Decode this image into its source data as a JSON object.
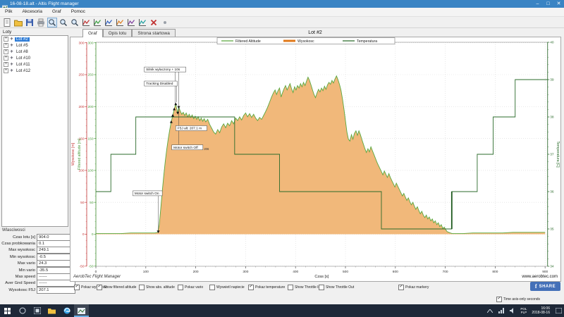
{
  "window": {
    "title": "16-08-18.alt - Altis Flight manager"
  },
  "menu": {
    "items": [
      "Plik",
      "Akcesoria",
      "Graf",
      "Pomoc"
    ]
  },
  "toolbar": {
    "icons": [
      {
        "name": "new-file-icon",
        "type": "doc"
      },
      {
        "name": "open-file-icon",
        "type": "folder"
      },
      {
        "name": "save-icon",
        "type": "floppy"
      },
      {
        "name": "print-icon",
        "type": "printer"
      },
      {
        "name": "zoom-in-icon",
        "type": "zoom",
        "selected": true
      },
      {
        "name": "zoom-out-icon",
        "type": "zoom"
      },
      {
        "name": "zoom-reset-icon",
        "type": "zoom"
      },
      {
        "name": "chart-altitude-icon",
        "type": "chart",
        "color": "#c03030"
      },
      {
        "name": "chart-vario-icon",
        "type": "chart",
        "color": "#3aa040"
      },
      {
        "name": "chart-voltage-icon",
        "type": "chart",
        "color": "#3060c0"
      },
      {
        "name": "chart-temperature-icon",
        "type": "chart",
        "color": "#e08020"
      },
      {
        "name": "chart-throttle-icon",
        "type": "chart",
        "color": "#8040a0"
      },
      {
        "name": "chart-markers-icon",
        "type": "chart",
        "color": "#20a0a0"
      },
      {
        "name": "delete-icon",
        "type": "cross"
      },
      {
        "name": "options-icon",
        "type": "dot"
      }
    ]
  },
  "sidebar": {
    "flights_label": "Loty",
    "flights": [
      "Lot #2",
      "Lot #5",
      "Lot #8",
      "Lot #10",
      "Lot #11",
      "Lot #12"
    ],
    "selected_flight": "Lot #2",
    "properties_title": "Wlasciwosci",
    "properties": [
      {
        "label": "Czas lotu [s]",
        "value": "904.0"
      },
      {
        "label": "Czas probkowania",
        "value": "0.1"
      },
      {
        "label": "Max wysokosc",
        "value": "249.1"
      },
      {
        "label": "Min wysokosc",
        "value": "-0.5"
      },
      {
        "label": "Max vario",
        "value": "24.3"
      },
      {
        "label": "Min vario",
        "value": "-35.5"
      },
      {
        "label": "Max speed",
        "value": "------"
      },
      {
        "label": "Aver Gnd Speed",
        "value": "------"
      },
      {
        "label": "Wysokosc F5J",
        "value": "207.1"
      }
    ]
  },
  "tabs": [
    "Graf",
    "Opis lotu",
    "Strona startowa"
  ],
  "chart_data": {
    "type": "line",
    "title": "Lot #2",
    "xlabel": "Czas [s]",
    "xlim": [
      0,
      905
    ],
    "x_ticks": [
      0,
      100,
      200,
      300,
      400,
      500,
      600,
      700,
      800,
      900
    ],
    "grid": true,
    "legend_position": "top",
    "legend": [
      "Filtered Altitude",
      "Wysokosc",
      "Temperatura"
    ],
    "axes": {
      "left_outer": {
        "label": "Wysokosc [m]",
        "color": "#c23232",
        "range": [
          -50,
          300
        ],
        "ticks": [
          300,
          250,
          200,
          150,
          100,
          50,
          0,
          -50
        ]
      },
      "left_inner": {
        "label": "Filtered altitude [m]",
        "color": "#4a9a3a",
        "range": [
          -50,
          300
        ],
        "ticks": [
          300,
          250,
          200,
          150,
          100,
          50,
          0,
          -50
        ]
      },
      "right": {
        "label": "Temperatura [C]",
        "color": "#2b6b2b",
        "range": [
          34,
          40
        ],
        "ticks": [
          40,
          39,
          38,
          37,
          36,
          35,
          34
        ]
      }
    },
    "colors": {
      "area": "#f1b87a",
      "filtered_line": "#5aa83f",
      "temperature_line": "#2b6b2b",
      "marker": "#111111"
    },
    "altitude_profile": [
      [
        0,
        1
      ],
      [
        25,
        1
      ],
      [
        50,
        1
      ],
      [
        70,
        2
      ],
      [
        90,
        2
      ],
      [
        105,
        2
      ],
      [
        118,
        2
      ],
      [
        124,
        3
      ],
      [
        127,
        15
      ],
      [
        130,
        40
      ],
      [
        133,
        68
      ],
      [
        136,
        92
      ],
      [
        139,
        114
      ],
      [
        142,
        133
      ],
      [
        145,
        150
      ],
      [
        148,
        164
      ],
      [
        151,
        176
      ],
      [
        154,
        186
      ],
      [
        157,
        196
      ],
      [
        160,
        204
      ],
      [
        162,
        196
      ],
      [
        164,
        190
      ],
      [
        166,
        199
      ],
      [
        169,
        193
      ],
      [
        172,
        188
      ],
      [
        175,
        191
      ],
      [
        178,
        186
      ],
      [
        181,
        190
      ],
      [
        184,
        184
      ],
      [
        187,
        188
      ],
      [
        190,
        183
      ],
      [
        193,
        187
      ],
      [
        196,
        181
      ],
      [
        199,
        185
      ],
      [
        202,
        180
      ],
      [
        205,
        184
      ],
      [
        208,
        178
      ],
      [
        211,
        182
      ],
      [
        214,
        177
      ],
      [
        217,
        181
      ],
      [
        220,
        176
      ],
      [
        224,
        180
      ],
      [
        228,
        172
      ],
      [
        232,
        166
      ],
      [
        236,
        160
      ],
      [
        240,
        157
      ],
      [
        244,
        164
      ],
      [
        248,
        159
      ],
      [
        252,
        168
      ],
      [
        256,
        173
      ],
      [
        260,
        167
      ],
      [
        264,
        174
      ],
      [
        268,
        170
      ],
      [
        272,
        178
      ],
      [
        276,
        173
      ],
      [
        280,
        182
      ],
      [
        284,
        178
      ],
      [
        288,
        184
      ],
      [
        292,
        179
      ],
      [
        296,
        186
      ],
      [
        300,
        190
      ],
      [
        304,
        184
      ],
      [
        308,
        189
      ],
      [
        312,
        183
      ],
      [
        316,
        188
      ],
      [
        320,
        182
      ],
      [
        324,
        178
      ],
      [
        328,
        183
      ],
      [
        332,
        180
      ],
      [
        336,
        186
      ],
      [
        340,
        192
      ],
      [
        344,
        199
      ],
      [
        348,
        207
      ],
      [
        352,
        215
      ],
      [
        356,
        222
      ],
      [
        359,
        226
      ],
      [
        362,
        219
      ],
      [
        365,
        225
      ],
      [
        368,
        229
      ],
      [
        371,
        215
      ],
      [
        374,
        222
      ],
      [
        377,
        228
      ],
      [
        380,
        233
      ],
      [
        383,
        226
      ],
      [
        386,
        231
      ],
      [
        389,
        236
      ],
      [
        392,
        228
      ],
      [
        395,
        222
      ],
      [
        398,
        231
      ],
      [
        401,
        226
      ],
      [
        404,
        233
      ],
      [
        407,
        229
      ],
      [
        410,
        236
      ],
      [
        413,
        231
      ],
      [
        416,
        238
      ],
      [
        419,
        233
      ],
      [
        422,
        240
      ],
      [
        425,
        246
      ],
      [
        428,
        241
      ],
      [
        431,
        234
      ],
      [
        434,
        226
      ],
      [
        437,
        219
      ],
      [
        440,
        214
      ],
      [
        443,
        221
      ],
      [
        446,
        227
      ],
      [
        449,
        223
      ],
      [
        452,
        229
      ],
      [
        455,
        225
      ],
      [
        458,
        232
      ],
      [
        461,
        227
      ],
      [
        464,
        234
      ],
      [
        467,
        238
      ],
      [
        470,
        235
      ],
      [
        473,
        241
      ],
      [
        476,
        237
      ],
      [
        479,
        243
      ],
      [
        482,
        248
      ],
      [
        485,
        242
      ],
      [
        488,
        235
      ],
      [
        491,
        226
      ],
      [
        494,
        212
      ],
      [
        497,
        196
      ],
      [
        500,
        178
      ],
      [
        503,
        160
      ],
      [
        506,
        149
      ],
      [
        509,
        146
      ],
      [
        512,
        156
      ],
      [
        515,
        149
      ],
      [
        518,
        158
      ],
      [
        521,
        162
      ],
      [
        524,
        155
      ],
      [
        527,
        162
      ],
      [
        530,
        156
      ],
      [
        533,
        148
      ],
      [
        536,
        141
      ],
      [
        539,
        134
      ],
      [
        542,
        128
      ],
      [
        545,
        134
      ],
      [
        548,
        129
      ],
      [
        551,
        137
      ],
      [
        554,
        131
      ],
      [
        557,
        125
      ],
      [
        560,
        119
      ],
      [
        563,
        113
      ],
      [
        566,
        108
      ],
      [
        569,
        103
      ],
      [
        572,
        98
      ],
      [
        575,
        93
      ],
      [
        578,
        99
      ],
      [
        581,
        94
      ],
      [
        584,
        89
      ],
      [
        587,
        95
      ],
      [
        590,
        89
      ],
      [
        593,
        84
      ],
      [
        596,
        79
      ],
      [
        599,
        74
      ],
      [
        602,
        80
      ],
      [
        605,
        75
      ],
      [
        608,
        70
      ],
      [
        611,
        65
      ],
      [
        614,
        60
      ],
      [
        617,
        64
      ],
      [
        620,
        58
      ],
      [
        623,
        53
      ],
      [
        626,
        57
      ],
      [
        629,
        51
      ],
      [
        632,
        46
      ],
      [
        635,
        50
      ],
      [
        638,
        44
      ],
      [
        641,
        39
      ],
      [
        644,
        43
      ],
      [
        647,
        37
      ],
      [
        650,
        32
      ],
      [
        653,
        36
      ],
      [
        656,
        30
      ],
      [
        659,
        26
      ],
      [
        662,
        30
      ],
      [
        665,
        24
      ],
      [
        668,
        27
      ],
      [
        671,
        21
      ],
      [
        674,
        24
      ],
      [
        677,
        18
      ],
      [
        680,
        21
      ],
      [
        683,
        15
      ],
      [
        686,
        18
      ],
      [
        689,
        12
      ],
      [
        692,
        15
      ],
      [
        695,
        9
      ],
      [
        698,
        11
      ],
      [
        701,
        7
      ],
      [
        704,
        4
      ],
      [
        707,
        3
      ],
      [
        710,
        2
      ],
      [
        714,
        1
      ],
      [
        720,
        1
      ],
      [
        735,
        1
      ],
      [
        755,
        2
      ],
      [
        775,
        2
      ],
      [
        795,
        2
      ],
      [
        815,
        2
      ],
      [
        835,
        3
      ],
      [
        855,
        3
      ],
      [
        875,
        3
      ],
      [
        900,
        3
      ]
    ],
    "temperature_steps": [
      [
        0,
        36
      ],
      [
        30,
        37
      ],
      [
        80,
        38
      ],
      [
        278,
        37
      ],
      [
        368,
        36
      ],
      [
        572,
        35
      ],
      [
        713,
        36
      ],
      [
        764,
        37
      ],
      [
        796,
        38
      ],
      [
        840,
        39
      ]
    ],
    "temperature_end_t": 905,
    "temperature_bold_step": {
      "t": 713,
      "from": 35,
      "to": 36
    },
    "markers": [
      {
        "t": 125,
        "alt": 4,
        "dir": "down"
      },
      {
        "t": 151,
        "alt": 176,
        "dir": "up"
      },
      {
        "t": 154,
        "alt": 186,
        "dir": "up"
      },
      {
        "t": 157,
        "alt": 196,
        "dir": "up"
      },
      {
        "t": 160,
        "alt": 204,
        "dir": "up"
      },
      {
        "t": 164,
        "alt": 190,
        "dir": "down"
      },
      {
        "t": 166,
        "alt": 199,
        "dir": "down"
      }
    ],
    "annotations": [
      {
        "text": "Silnik wylaczony + 10s",
        "t": 97,
        "alt": 262,
        "leaders": [
          [
            159,
            255,
            202
          ],
          [
            166,
            255,
            141
          ]
        ]
      },
      {
        "text": "Tracking Disabled",
        "t": 97,
        "alt": 240,
        "leaders": [
          [
            162,
            233,
            207
          ]
        ]
      },
      {
        "text": "F5J alt: 207.1 m",
        "t": 160,
        "alt": 170,
        "leaders": []
      },
      {
        "text": "Motor switch Off",
        "suffix": "206",
        "t": 152,
        "alt": 140,
        "leaders": []
      },
      {
        "text": "Motor switch On",
        "t": 74,
        "alt": 68,
        "leaders": [
          [
            125,
            60,
            6
          ]
        ]
      }
    ],
    "branding_left": "AerobTec Flight Manager",
    "branding_right": "www.aerobtec.com"
  },
  "footer": {
    "checkboxes": [
      {
        "label": "Pokaz wysokosc",
        "checked": true,
        "x": 105
      },
      {
        "label": "Show filtered altitude",
        "checked": true,
        "x": 137
      },
      {
        "label": "Show abs. altitude",
        "checked": false,
        "x": 197
      },
      {
        "label": "Pokaz vario",
        "checked": false,
        "x": 252
      },
      {
        "label": "Wyswietl napiecie",
        "checked": false,
        "x": 297
      },
      {
        "label": "Pokaz temperature",
        "checked": true,
        "x": 352
      },
      {
        "label": "Show Throttle In",
        "checked": false,
        "x": 408
      },
      {
        "label": "Show Throttle Out",
        "checked": false,
        "x": 452
      },
      {
        "label": "Pokaz markery",
        "checked": true,
        "x": 565
      }
    ],
    "share_label": "SHARE",
    "share_icon": "f",
    "time_axis": {
      "label": "Time axis-only seconds",
      "checked": true
    }
  },
  "taskbar": {
    "lang_top": "POL",
    "lang_bottom": "PLP",
    "time": "16:06",
    "date": "2018-08-16"
  }
}
